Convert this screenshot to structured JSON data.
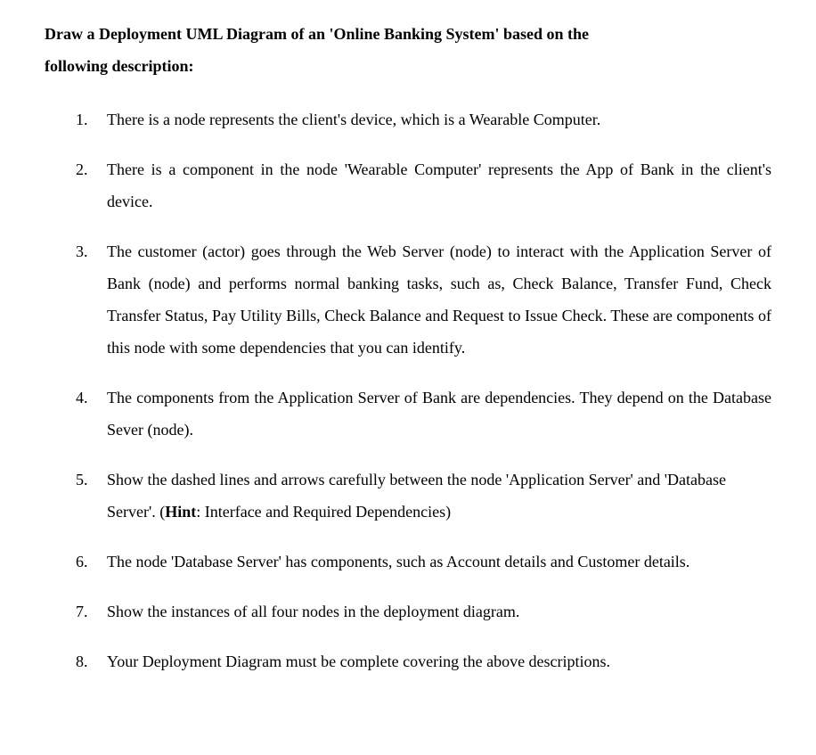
{
  "header": {
    "line1": "Draw a Deployment UML Diagram of an 'Online Banking System' based on the",
    "line2": "following description:"
  },
  "items": [
    {
      "number": "1.",
      "text": "There is a node represents the client's device, which is a Wearable Computer.",
      "justify": false
    },
    {
      "number": "2.",
      "text": "There is a component in the node 'Wearable Computer' represents the App of Bank in the client's device.",
      "justify": true
    },
    {
      "number": "3.",
      "text": "The customer (actor) goes through the Web Server (node) to interact with the Application Server of Bank (node) and performs normal banking tasks, such as, Check Balance, Transfer Fund, Check Transfer Status, Pay Utility Bills, Check Balance and Request to Issue Check. These are components of this node with some dependencies that you can identify.",
      "justify": true
    },
    {
      "number": "4.",
      "text": "The components from the Application Server of Bank are dependencies. They depend on the Database Sever (node).",
      "justify": true
    },
    {
      "number": "5.",
      "text_before_hint": "Show the dashed lines and arrows carefully between the node 'Application Server' and 'Database Server'. (",
      "hint_label": "Hint",
      "text_after_hint": ": Interface and Required Dependencies)",
      "justify": false,
      "has_hint": true
    },
    {
      "number": "6.",
      "text": "The node 'Database Server' has components, such as Account details and Customer details.",
      "justify": false
    },
    {
      "number": "7.",
      "text": "Show the instances of all four nodes in the deployment diagram.",
      "justify": false
    },
    {
      "number": "8.",
      "text": "Your Deployment Diagram must be complete covering the above descriptions.",
      "justify": false
    }
  ]
}
